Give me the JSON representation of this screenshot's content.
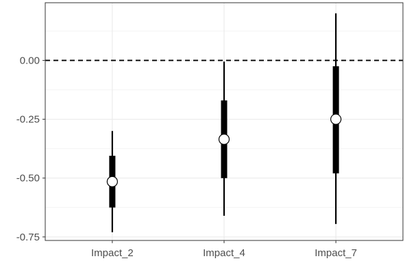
{
  "chart_data": {
    "type": "interval",
    "categories": [
      "Impact_2",
      "Impact_4",
      "Impact_7"
    ],
    "estimates": [
      {
        "name": "Impact_2",
        "point": -0.515,
        "inner": [
          -0.625,
          -0.405
        ],
        "outer": [
          -0.73,
          -0.3
        ]
      },
      {
        "name": "Impact_4",
        "point": -0.335,
        "inner": [
          -0.5,
          -0.17
        ],
        "outer": [
          -0.66,
          -0.005
        ]
      },
      {
        "name": "Impact_7",
        "point": -0.25,
        "inner": [
          -0.48,
          -0.025
        ],
        "outer": [
          -0.695,
          0.2
        ]
      }
    ],
    "y_ticks": [
      0.0,
      -0.25,
      -0.5,
      -0.75
    ],
    "y_tick_labels": [
      "0.00",
      "-0.25",
      "-0.50",
      "-0.75"
    ],
    "ylim": [
      -0.765,
      0.245
    ],
    "reference_line": 0.0,
    "reference_style": "dashed",
    "grid": true,
    "title": "",
    "xlabel": "",
    "ylabel": ""
  }
}
